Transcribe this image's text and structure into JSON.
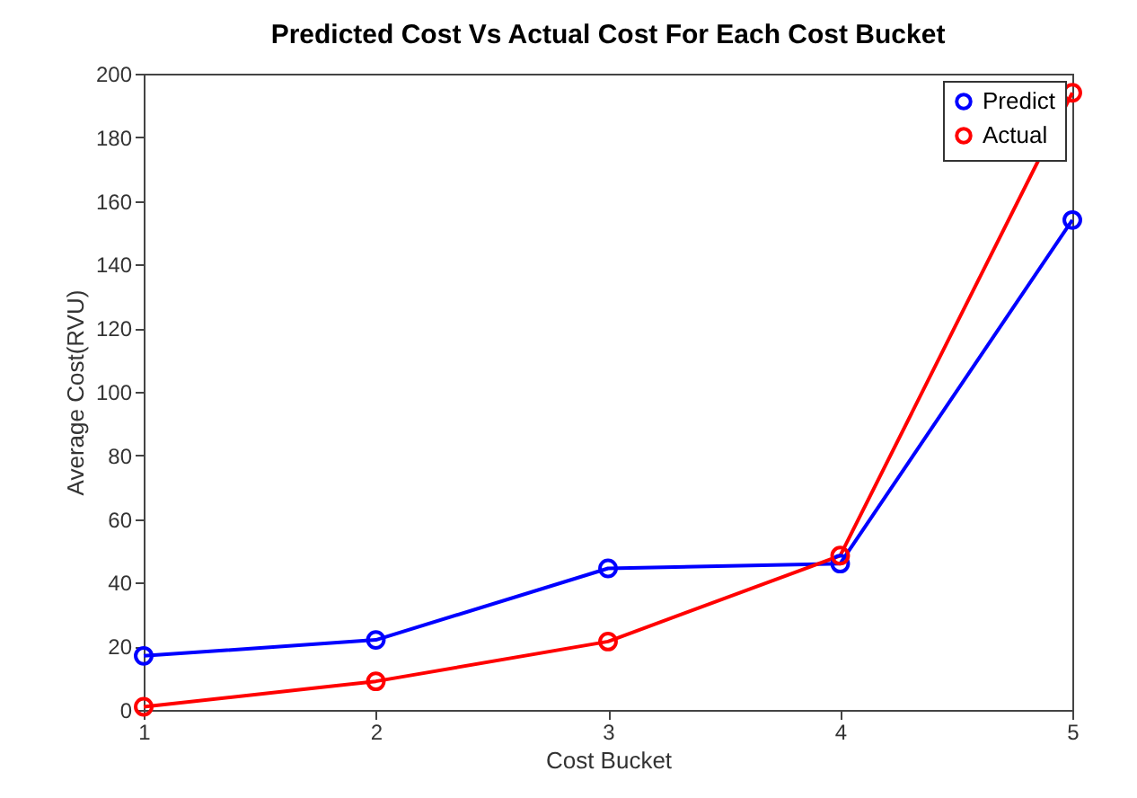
{
  "chart_data": {
    "type": "line",
    "title": "Predicted Cost Vs Actual Cost For Each Cost Bucket",
    "xlabel": "Cost Bucket",
    "ylabel": "Average Cost(RVU)",
    "x": [
      1,
      2,
      3,
      4,
      5
    ],
    "series": [
      {
        "name": "Predict",
        "color": "#0000ff",
        "values": [
          17,
          22,
          44.5,
          46,
          154
        ]
      },
      {
        "name": "Actual",
        "color": "#ff0000",
        "values": [
          1,
          9,
          21.5,
          48.5,
          194
        ]
      }
    ],
    "xlim": [
      1,
      5
    ],
    "xticks": [
      1,
      2,
      3,
      4,
      5
    ],
    "ylim": [
      0,
      200
    ],
    "yticks": [
      0,
      20,
      40,
      60,
      80,
      100,
      120,
      140,
      160,
      180,
      200
    ],
    "grid": false,
    "legend": "top right",
    "marker": "circle",
    "line_style": "solid"
  }
}
